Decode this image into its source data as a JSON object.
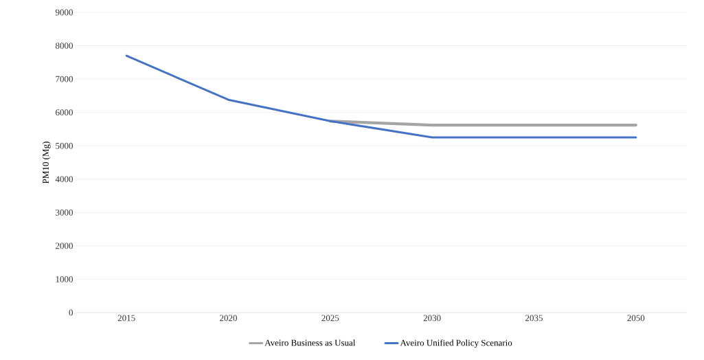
{
  "chart_data": {
    "type": "line",
    "ylabel": "PM10 (Mg)",
    "categories": [
      "2015",
      "2020",
      "2025",
      "2030",
      "2035",
      "2050"
    ],
    "series": [
      {
        "name": "Aveiro Business as Usual",
        "color": "#a5a5a5",
        "values": [
          null,
          null,
          5740,
          5620,
          5620,
          5620
        ]
      },
      {
        "name": "Aveiro Unified Policy Scenario",
        "color": "#4472c4",
        "values": [
          7700,
          6380,
          5740,
          5250,
          5250,
          5250
        ]
      }
    ],
    "ylim": [
      0,
      9000
    ],
    "yticks": [
      0,
      1000,
      2000,
      3000,
      4000,
      5000,
      6000,
      7000,
      8000,
      9000
    ],
    "grid": "y",
    "legend": "bottom",
    "marker": "none",
    "line_style": "solid"
  }
}
